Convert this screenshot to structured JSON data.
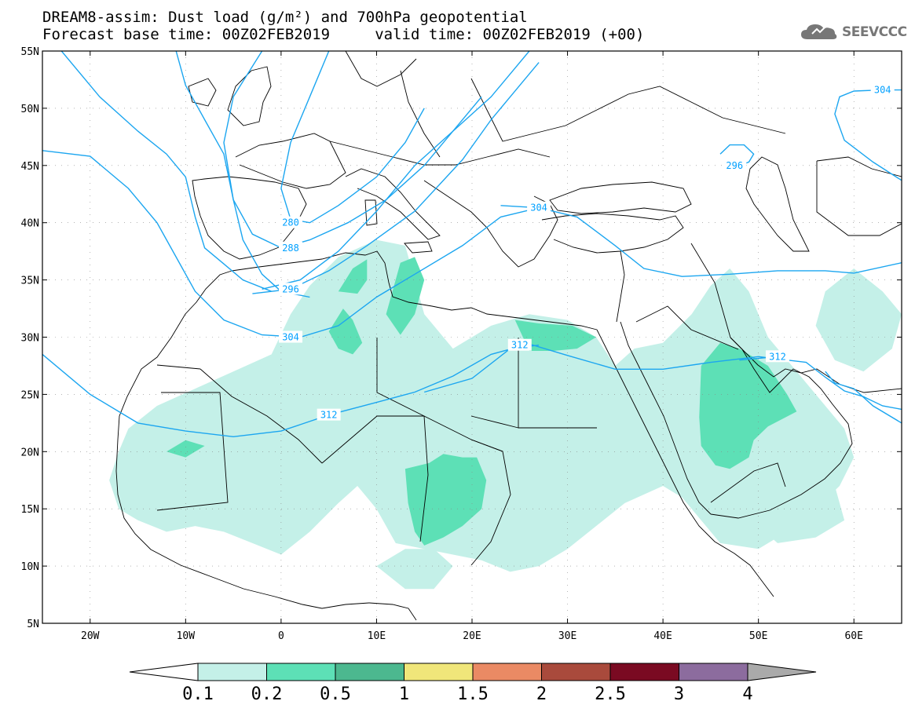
{
  "header": {
    "line1": "DREAM8-assim: Dust load (g/m²) and 700hPa geopotential",
    "line2": "Forecast base time: 00Z02FEB2019     valid time: 00Z02FEB2019 (+00)"
  },
  "logo": {
    "text": "SEEVCCC",
    "icon": "cloud-icon"
  },
  "map": {
    "lon_range": [
      -25,
      65
    ],
    "lat_range": [
      5,
      55
    ],
    "lat_ticks": [
      {
        "value": 55,
        "label": "55N"
      },
      {
        "value": 50,
        "label": "50N"
      },
      {
        "value": 45,
        "label": "45N"
      },
      {
        "value": 40,
        "label": "40N"
      },
      {
        "value": 35,
        "label": "35N"
      },
      {
        "value": 30,
        "label": "30N"
      },
      {
        "value": 25,
        "label": "25N"
      },
      {
        "value": 20,
        "label": "20N"
      },
      {
        "value": 15,
        "label": "15N"
      },
      {
        "value": 10,
        "label": "10N"
      },
      {
        "value": 5,
        "label": "5N"
      }
    ],
    "lon_ticks": [
      {
        "value": -20,
        "label": "20W"
      },
      {
        "value": -10,
        "label": "10W"
      },
      {
        "value": 0,
        "label": "0"
      },
      {
        "value": 10,
        "label": "10E"
      },
      {
        "value": 20,
        "label": "20E"
      },
      {
        "value": 30,
        "label": "30E"
      },
      {
        "value": 40,
        "label": "40E"
      },
      {
        "value": 50,
        "label": "50E"
      },
      {
        "value": 60,
        "label": "60E"
      }
    ],
    "geopotential_contours": [
      {
        "value": "304",
        "points": [
          [
            -25,
            46.3
          ],
          [
            -20,
            45.8
          ],
          [
            -16,
            43
          ],
          [
            -13,
            40
          ],
          [
            -11,
            37
          ],
          [
            -9,
            34
          ],
          [
            -6,
            31.5
          ],
          [
            -2,
            30.2
          ],
          [
            2,
            30
          ],
          [
            6,
            31
          ],
          [
            10,
            33.5
          ],
          [
            14,
            35.5
          ],
          [
            19,
            38
          ],
          [
            23,
            40.5
          ],
          [
            27,
            41.3
          ],
          [
            31,
            40.5
          ],
          [
            35,
            38
          ],
          [
            38,
            36
          ],
          [
            42,
            35.3
          ],
          [
            47,
            35.5
          ],
          [
            52,
            35.8
          ],
          [
            57,
            35.8
          ],
          [
            60,
            35.6
          ],
          [
            65,
            36.5
          ]
        ],
        "label_at": [
          1,
          30
        ]
      },
      {
        "value": "304",
        "points": [
          [
            -23,
            55
          ],
          [
            -19,
            51
          ],
          [
            -15,
            48
          ],
          [
            -12,
            46
          ],
          [
            -10,
            44
          ],
          [
            -9,
            40.5
          ],
          [
            -8,
            37.8
          ],
          [
            -6,
            36.4
          ],
          [
            -4,
            35
          ],
          [
            -1,
            34
          ]
        ],
        "label_at": null
      },
      {
        "value": "304",
        "points": [
          [
            26,
            55
          ],
          [
            22,
            51
          ],
          [
            18,
            48
          ],
          [
            14,
            45
          ],
          [
            10,
            41
          ],
          [
            6,
            37.5
          ],
          [
            2,
            35
          ],
          [
            -2,
            34.2
          ]
        ],
        "label_at": null
      },
      {
        "value": "304",
        "points": [
          [
            65,
            43.7
          ],
          [
            62,
            45.3
          ],
          [
            59,
            47.2
          ],
          [
            58,
            49.5
          ],
          [
            58.5,
            51
          ],
          [
            60,
            51.5
          ],
          [
            63,
            51.6
          ],
          [
            65,
            51.6
          ]
        ],
        "label_at": [
          63,
          51.6
        ]
      },
      {
        "value": "304",
        "points": [
          [
            23,
            41.5
          ],
          [
            27,
            41.3
          ]
        ],
        "label_at": [
          27,
          41.3
        ]
      },
      {
        "value": "296",
        "points": [
          [
            -11,
            55
          ],
          [
            -10,
            52
          ],
          [
            -8,
            49
          ],
          [
            -6,
            46
          ],
          [
            -5,
            42
          ],
          [
            -4,
            38.5
          ],
          [
            -2,
            35.5
          ],
          [
            0,
            34
          ],
          [
            3,
            33.5
          ]
        ],
        "label_at": null
      },
      {
        "value": "296",
        "points": [
          [
            -3,
            33.8
          ],
          [
            1,
            34.2
          ],
          [
            5,
            35.8
          ],
          [
            9,
            38
          ],
          [
            14,
            41
          ],
          [
            19,
            45.5
          ],
          [
            22,
            49
          ],
          [
            25,
            52
          ],
          [
            27,
            54
          ]
        ],
        "label_at": [
          1,
          34.2
        ]
      },
      {
        "value": "296",
        "points": [
          [
            46,
            46
          ],
          [
            47,
            46.8
          ],
          [
            48.5,
            46.8
          ],
          [
            49.5,
            46
          ],
          [
            49,
            45.3
          ],
          [
            48,
            45
          ],
          [
            47,
            45.5
          ]
        ],
        "label_at": [
          47.5,
          45
        ]
      },
      {
        "value": "288",
        "points": [
          [
            -2,
            55
          ],
          [
            -5,
            51
          ],
          [
            -6,
            47
          ],
          [
            -5,
            42
          ],
          [
            -3,
            39
          ],
          [
            0,
            37.8
          ],
          [
            3,
            38.5
          ],
          [
            7,
            40
          ],
          [
            11,
            42
          ],
          [
            15,
            45
          ],
          [
            18,
            48
          ],
          [
            21,
            51
          ]
        ],
        "label_at": [
          1,
          37.8
        ]
      },
      {
        "value": "280",
        "points": [
          [
            5,
            55
          ],
          [
            3,
            51
          ],
          [
            1,
            47
          ],
          [
            0,
            43
          ],
          [
            1,
            40.3
          ],
          [
            3,
            40
          ],
          [
            6,
            41.5
          ],
          [
            10,
            44
          ],
          [
            13,
            47
          ],
          [
            15,
            50
          ]
        ],
        "label_at": [
          1,
          40
        ]
      },
      {
        "value": "312",
        "points": [
          [
            -25,
            28.5
          ],
          [
            -20,
            25
          ],
          [
            -15,
            22.5
          ],
          [
            -10,
            21.8
          ],
          [
            -5,
            21.3
          ],
          [
            0,
            21.8
          ],
          [
            5,
            23.2
          ],
          [
            10,
            24.3
          ],
          [
            14,
            25.2
          ],
          [
            18,
            26.6
          ],
          [
            22,
            28.5
          ],
          [
            26,
            29.4
          ],
          [
            30,
            28.4
          ],
          [
            35,
            27.2
          ],
          [
            40,
            27.2
          ],
          [
            45,
            27.8
          ],
          [
            50,
            28.3
          ],
          [
            55,
            27.8
          ],
          [
            57,
            26.5
          ],
          [
            59,
            25.3
          ],
          [
            61,
            24.8
          ],
          [
            63,
            24
          ],
          [
            65,
            23.7
          ]
        ],
        "label_at": [
          5,
          23.2
        ]
      },
      {
        "value": "312",
        "points": [
          [
            65,
            22.5
          ],
          [
            62,
            24
          ],
          [
            60,
            25.5
          ],
          [
            58,
            26
          ],
          [
            57,
            27
          ]
        ],
        "label_at": null
      },
      {
        "value": "312",
        "points": [
          [
            15,
            25.2
          ],
          [
            20,
            26.4
          ],
          [
            24,
            29
          ],
          [
            27,
            29.3
          ]
        ],
        "label_at": [
          25,
          29.3
        ]
      },
      {
        "value": "312",
        "points": [
          [
            48,
            28
          ],
          [
            52,
            28.3
          ]
        ],
        "label_at": [
          52,
          28.3
        ]
      }
    ],
    "dust_regions": [
      {
        "level": "0.1",
        "points": [
          [
            -16,
            22
          ],
          [
            -13,
            24
          ],
          [
            -9,
            25.5
          ],
          [
            -5,
            27
          ],
          [
            -1,
            28.5
          ],
          [
            1,
            32
          ],
          [
            3,
            34.5
          ],
          [
            6,
            37
          ],
          [
            10,
            38.5
          ],
          [
            13,
            38
          ],
          [
            14,
            35
          ],
          [
            15,
            32
          ],
          [
            18,
            29
          ],
          [
            22,
            31
          ],
          [
            26,
            32
          ],
          [
            30,
            31.5
          ],
          [
            33,
            30
          ],
          [
            35,
            27.5
          ],
          [
            37,
            29
          ],
          [
            40,
            29.5
          ],
          [
            43,
            32
          ],
          [
            45,
            34.5
          ],
          [
            47,
            36
          ],
          [
            49,
            34
          ],
          [
            51,
            30
          ],
          [
            54,
            27
          ],
          [
            57,
            24
          ],
          [
            59,
            22
          ],
          [
            60,
            19.5
          ],
          [
            58.5,
            17
          ],
          [
            56,
            15
          ],
          [
            53,
            13
          ],
          [
            50,
            11.5
          ],
          [
            46,
            12
          ],
          [
            44,
            14
          ],
          [
            42,
            16
          ],
          [
            40,
            17
          ],
          [
            36,
            15.5
          ],
          [
            33,
            13.5
          ],
          [
            30,
            11.5
          ],
          [
            27,
            10
          ],
          [
            24,
            9.5
          ],
          [
            21,
            10.5
          ],
          [
            18,
            11
          ],
          [
            15,
            11.5
          ],
          [
            12,
            12
          ],
          [
            10,
            15
          ],
          [
            8,
            17
          ],
          [
            6,
            15.5
          ],
          [
            3,
            13
          ],
          [
            0,
            11
          ],
          [
            -3,
            12
          ],
          [
            -6,
            13
          ],
          [
            -9,
            13.5
          ],
          [
            -12,
            13
          ],
          [
            -15,
            14
          ],
          [
            -17,
            15
          ],
          [
            -18,
            17.5
          ],
          [
            -17,
            20
          ]
        ]
      },
      {
        "level": "0.1",
        "points": [
          [
            10,
            10
          ],
          [
            13,
            8
          ],
          [
            16,
            8
          ],
          [
            18,
            10
          ],
          [
            16,
            11.5
          ],
          [
            13,
            11.5
          ]
        ]
      },
      {
        "level": "0.1",
        "points": [
          [
            48,
            15
          ],
          [
            52,
            12
          ],
          [
            56,
            12.5
          ],
          [
            59,
            14
          ],
          [
            58,
            17
          ],
          [
            55,
            19
          ],
          [
            51,
            18
          ],
          [
            48,
            17
          ]
        ]
      },
      {
        "level": "0.1",
        "points": [
          [
            57,
            34
          ],
          [
            60,
            36
          ],
          [
            63,
            34
          ],
          [
            65,
            32
          ],
          [
            64,
            29
          ],
          [
            61,
            27
          ],
          [
            58,
            28
          ],
          [
            56,
            31
          ]
        ]
      },
      {
        "level": "0.2",
        "points": [
          [
            13,
            18.5
          ],
          [
            15.5,
            19
          ],
          [
            17,
            19.8
          ],
          [
            19,
            19.5
          ],
          [
            20.5,
            19.5
          ],
          [
            21.5,
            17.5
          ],
          [
            21,
            15
          ],
          [
            19,
            13.5
          ],
          [
            17,
            12.5
          ],
          [
            15,
            11.8
          ],
          [
            14,
            13
          ],
          [
            13.3,
            15.5
          ]
        ]
      },
      {
        "level": "0.2",
        "points": [
          [
            44,
            27.5
          ],
          [
            46,
            29.5
          ],
          [
            48,
            29
          ],
          [
            51,
            27.5
          ],
          [
            53,
            25
          ],
          [
            54,
            23.5
          ],
          [
            51,
            22.2
          ],
          [
            49.5,
            21
          ],
          [
            49,
            19.5
          ],
          [
            47,
            18.5
          ],
          [
            45.5,
            18.8
          ],
          [
            44,
            20.5
          ],
          [
            43.8,
            23
          ]
        ]
      },
      {
        "level": "0.2",
        "points": [
          [
            5,
            30.5
          ],
          [
            6.5,
            32.5
          ],
          [
            7.5,
            31.5
          ],
          [
            8.5,
            29.5
          ],
          [
            7.5,
            28.5
          ],
          [
            6,
            29
          ]
        ]
      },
      {
        "level": "0.2",
        "points": [
          [
            6,
            34
          ],
          [
            7.5,
            36
          ],
          [
            9,
            36.8
          ],
          [
            9,
            35
          ],
          [
            8,
            33.8
          ]
        ]
      },
      {
        "level": "0.2",
        "points": [
          [
            11,
            32
          ],
          [
            12.5,
            36.5
          ],
          [
            14,
            37
          ],
          [
            15,
            35
          ],
          [
            14,
            32
          ],
          [
            12.5,
            30.2
          ]
        ]
      },
      {
        "level": "0.2",
        "points": [
          [
            24.5,
            31.5
          ],
          [
            27,
            31.2
          ],
          [
            30.5,
            31
          ],
          [
            33,
            30
          ],
          [
            31,
            29
          ],
          [
            28.5,
            28.8
          ],
          [
            26,
            28.8
          ]
        ]
      },
      {
        "level": "0.2",
        "points": [
          [
            -12,
            20
          ],
          [
            -10,
            21
          ],
          [
            -8,
            20.5
          ],
          [
            -10,
            19.5
          ]
        ]
      }
    ]
  },
  "colorbar": {
    "levels": [
      "0.1",
      "0.2",
      "0.5",
      "1",
      "1.5",
      "2",
      "2.5",
      "3",
      "4"
    ],
    "colors": [
      "#c4f0e8",
      "#5de0b6",
      "#4cb88f",
      "#f0e67a",
      "#ea8a64",
      "#a94a3c",
      "#7a0a22",
      "#8c6c9e",
      "#aaaaaa"
    ]
  },
  "colors": {
    "contour": "#1ca6f0",
    "coast": "#000000",
    "grid": "#888888"
  }
}
